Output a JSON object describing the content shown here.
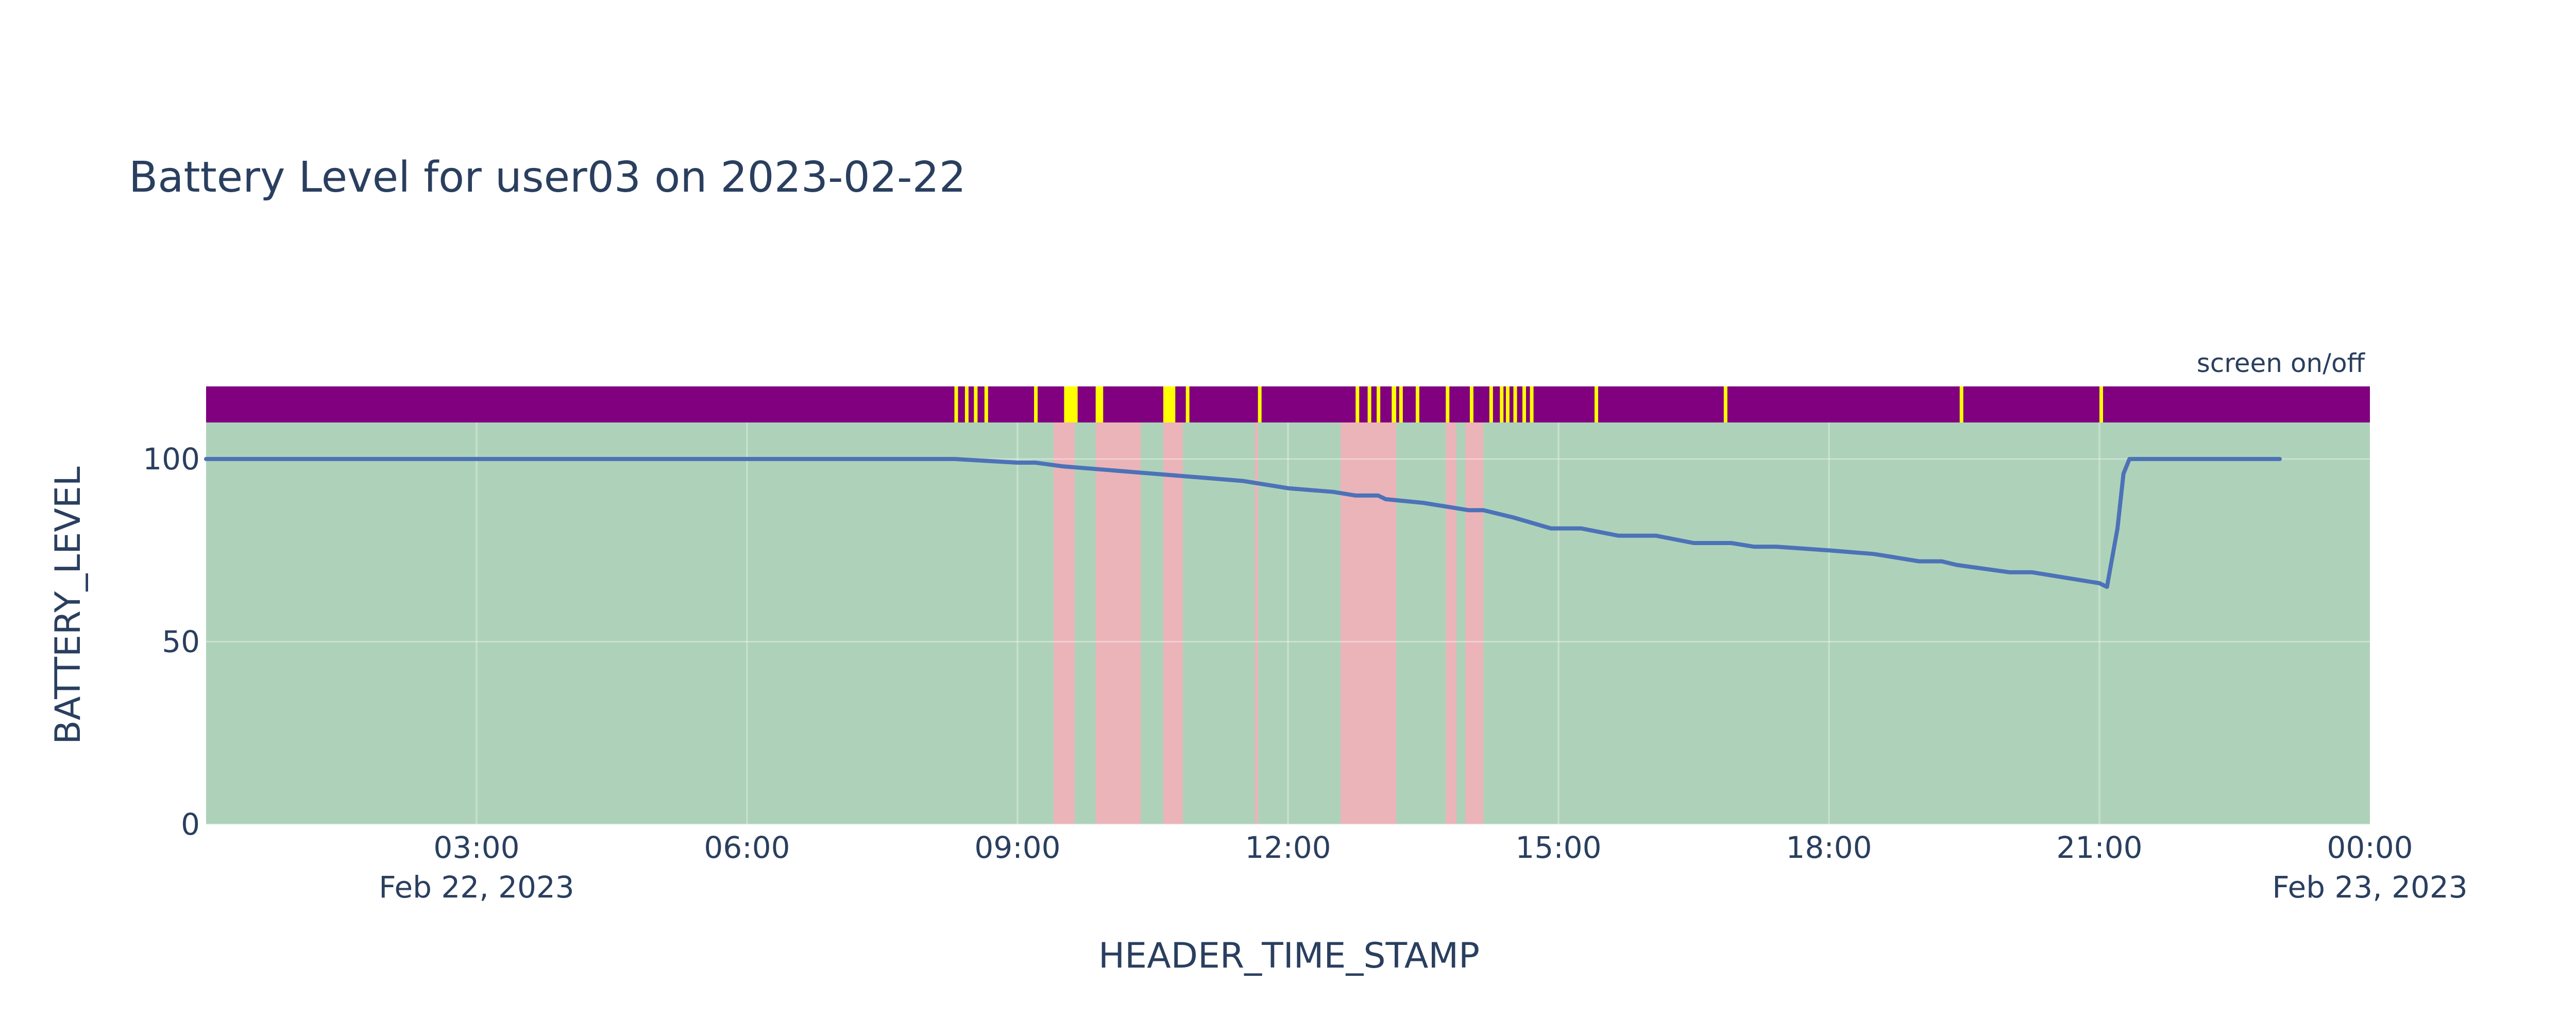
{
  "chart_data": {
    "type": "line",
    "title": "Battery Level for user03 on 2023-02-22",
    "xlabel": "HEADER_TIME_STAMP",
    "ylabel": "BATTERY_LEVEL",
    "x_range": [
      "2023-02-22 00:00",
      "2023-02-23 00:00"
    ],
    "ylim": [
      0,
      110
    ],
    "grid": true,
    "legend": "none",
    "x_ticks": [
      {
        "time": "2023-02-22 03:00",
        "label": "03:00",
        "sublabel": "Feb 22, 2023"
      },
      {
        "time": "2023-02-22 06:00",
        "label": "06:00",
        "sublabel": ""
      },
      {
        "time": "2023-02-22 09:00",
        "label": "09:00",
        "sublabel": ""
      },
      {
        "time": "2023-02-22 12:00",
        "label": "12:00",
        "sublabel": ""
      },
      {
        "time": "2023-02-22 15:00",
        "label": "15:00",
        "sublabel": ""
      },
      {
        "time": "2023-02-22 18:00",
        "label": "18:00",
        "sublabel": ""
      },
      {
        "time": "2023-02-22 21:00",
        "label": "21:00",
        "sublabel": ""
      },
      {
        "time": "2023-02-23 00:00",
        "label": "00:00",
        "sublabel": "Feb 23, 2023"
      }
    ],
    "y_ticks": [
      {
        "value": 0,
        "label": "0"
      },
      {
        "value": 50,
        "label": "50"
      },
      {
        "value": 100,
        "label": "100"
      }
    ],
    "series": [
      {
        "color": "#4c72b8",
        "points": [
          [
            "00:00",
            100
          ],
          [
            "03:00",
            100
          ],
          [
            "06:00",
            100
          ],
          [
            "08:18",
            100
          ],
          [
            "09:00",
            99
          ],
          [
            "09:12",
            99
          ],
          [
            "09:30",
            98
          ],
          [
            "10:00",
            97
          ],
          [
            "10:30",
            96
          ],
          [
            "11:00",
            95
          ],
          [
            "11:30",
            94
          ],
          [
            "12:00",
            92
          ],
          [
            "12:30",
            91
          ],
          [
            "12:45",
            90
          ],
          [
            "13:00",
            90
          ],
          [
            "13:05",
            89
          ],
          [
            "13:30",
            88
          ],
          [
            "14:00",
            86
          ],
          [
            "14:10",
            86
          ],
          [
            "14:30",
            84
          ],
          [
            "14:55",
            81
          ],
          [
            "15:15",
            81
          ],
          [
            "15:40",
            79
          ],
          [
            "16:05",
            79
          ],
          [
            "16:30",
            77
          ],
          [
            "16:55",
            77
          ],
          [
            "17:10",
            76
          ],
          [
            "17:25",
            76
          ],
          [
            "18:00",
            75
          ],
          [
            "18:30",
            74
          ],
          [
            "19:00",
            72
          ],
          [
            "19:15",
            72
          ],
          [
            "19:25",
            71
          ],
          [
            "20:00",
            69
          ],
          [
            "20:15",
            69
          ],
          [
            "20:30",
            68
          ],
          [
            "21:00",
            66
          ],
          [
            "21:05",
            65
          ],
          [
            "21:12",
            81
          ],
          [
            "21:16",
            96
          ],
          [
            "21:18",
            98
          ],
          [
            "21:20",
            100
          ],
          [
            "23:00",
            100
          ]
        ]
      }
    ],
    "background_color": "#aed2b9",
    "highlight_color": "#ebb4b9",
    "highlight_bands": [
      [
        "09:24",
        "09:38"
      ],
      [
        "09:52",
        "10:22"
      ],
      [
        "10:37",
        "10:50"
      ],
      [
        "11:38",
        "11:40"
      ],
      [
        "12:35",
        "13:12"
      ],
      [
        "13:45",
        "13:52"
      ],
      [
        "13:58",
        "14:10"
      ]
    ],
    "screen_strip": {
      "label": "screen on/off",
      "off_color": "#800080",
      "on_color": "#ffff00",
      "on_events": [
        [
          "08:18",
          "08:20"
        ],
        [
          "08:25",
          "08:27"
        ],
        [
          "08:31",
          "08:33"
        ],
        [
          "08:38",
          "08:40"
        ],
        [
          "09:11",
          "09:13"
        ],
        [
          "09:31",
          "09:40"
        ],
        [
          "09:52",
          "09:57"
        ],
        [
          "10:37",
          "10:45"
        ],
        [
          "10:52",
          "10:54"
        ],
        [
          "11:40",
          "11:42"
        ],
        [
          "12:45",
          "12:47"
        ],
        [
          "12:53",
          "12:55"
        ],
        [
          "12:59",
          "13:01"
        ],
        [
          "13:09",
          "13:12"
        ],
        [
          "13:14",
          "13:16"
        ],
        [
          "13:25",
          "13:27"
        ],
        [
          "13:45",
          "13:47"
        ],
        [
          "14:01",
          "14:03"
        ],
        [
          "14:14",
          "14:16"
        ],
        [
          "14:21",
          "14:23"
        ],
        [
          "14:25",
          "14:27"
        ],
        [
          "14:30",
          "14:32"
        ],
        [
          "14:36",
          "14:38"
        ],
        [
          "14:41",
          "14:43"
        ],
        [
          "15:24",
          "15:26"
        ],
        [
          "16:50",
          "16:52"
        ],
        [
          "19:27",
          "19:29"
        ],
        [
          "21:00",
          "21:02"
        ]
      ]
    }
  }
}
